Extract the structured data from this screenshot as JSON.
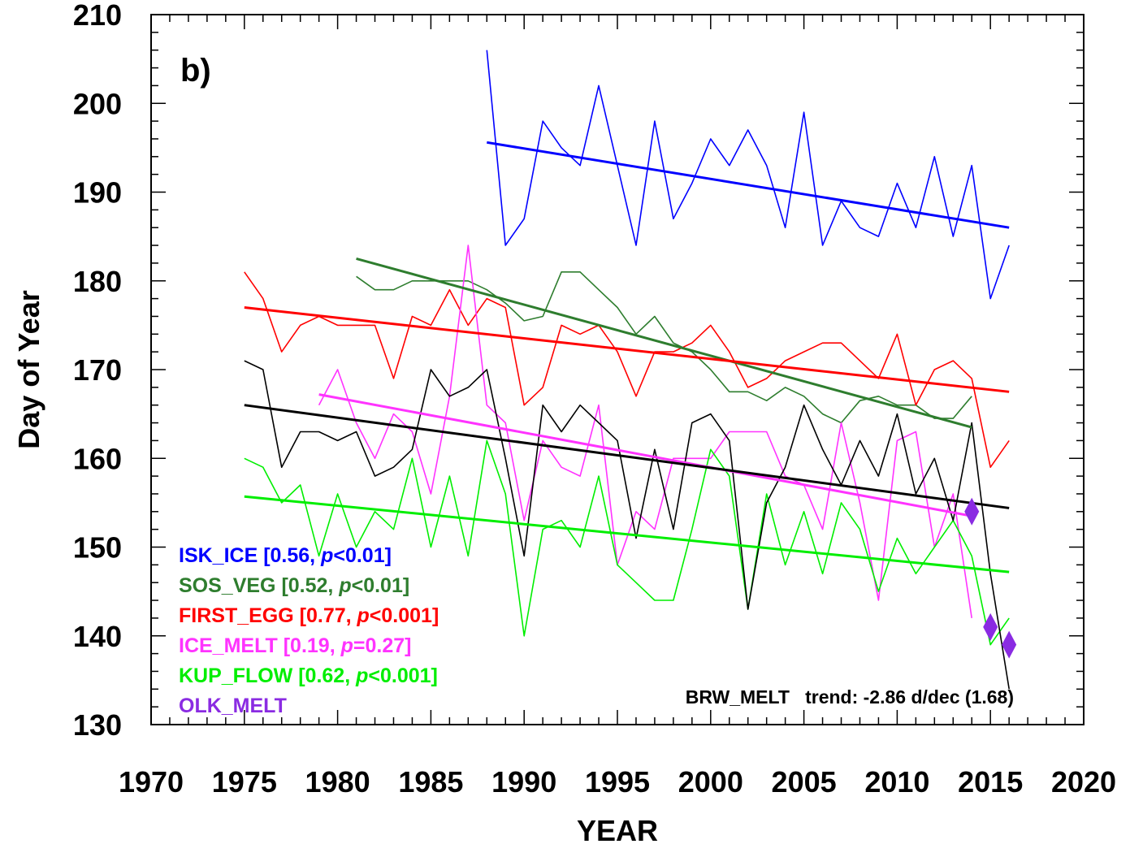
{
  "chart_data": {
    "type": "line",
    "panel_label": "b)",
    "xlabel": "YEAR",
    "ylabel": "Day of Year",
    "xlim": [
      1970,
      2020
    ],
    "ylim": [
      130,
      210
    ],
    "xticks": [
      "1970",
      "1975",
      "1980",
      "1985",
      "1990",
      "1995",
      "2000",
      "2005",
      "2010",
      "2015",
      "2020"
    ],
    "yticks": [
      "130",
      "140",
      "150",
      "160",
      "170",
      "180",
      "190",
      "200",
      "210"
    ],
    "trend_annotation": "BRW_MELT   trend: -2.86 d/dec (1.68)",
    "series": [
      {
        "name": "ISK_ICE",
        "stats": "[0.56, p<0.01]",
        "stats_prefix": "[0.56, ",
        "stats_p": "p",
        "stats_suffix": "<0.01]",
        "color": "#0000ff",
        "x": [
          1988,
          1989,
          1990,
          1991,
          1992,
          1993,
          1994,
          1995,
          1996,
          1997,
          1998,
          1999,
          2000,
          2001,
          2002,
          2003,
          2004,
          2005,
          2006,
          2007,
          2008,
          2009,
          2010,
          2011,
          2012,
          2013,
          2014,
          2015,
          2016
        ],
        "y": [
          206,
          184,
          187,
          198,
          195,
          193,
          202,
          193,
          184,
          198,
          187,
          191,
          196,
          193,
          197,
          193,
          186,
          199,
          184,
          189,
          186,
          185,
          191,
          186,
          194,
          185,
          193,
          178,
          184
        ],
        "trend": [
          [
            1988,
            195.6
          ],
          [
            2016,
            186.0
          ]
        ]
      },
      {
        "name": "SOS_VEG",
        "stats": "[0.52, p<0.01]",
        "stats_prefix": "[0.52, ",
        "stats_p": "p",
        "stats_suffix": "<0.01]",
        "color": "#2e7d2e",
        "x": [
          1981,
          1982,
          1983,
          1984,
          1985,
          1986,
          1987,
          1988,
          1989,
          1990,
          1991,
          1992,
          1993,
          1994,
          1995,
          1996,
          1997,
          1998,
          1999,
          2000,
          2001,
          2002,
          2003,
          2004,
          2005,
          2006,
          2007,
          2008,
          2009,
          2010,
          2011,
          2012,
          2013,
          2014
        ],
        "y": [
          180.5,
          179,
          179,
          180,
          180,
          180,
          180,
          179,
          177.5,
          175.5,
          176,
          181,
          181,
          179,
          177,
          174,
          176,
          173,
          172,
          170,
          167.5,
          167.5,
          166.5,
          168,
          167,
          165,
          164,
          166.5,
          167,
          166,
          166,
          164.5,
          164.5,
          167
        ],
        "trend": [
          [
            1981,
            182.5
          ],
          [
            2014,
            163.5
          ]
        ]
      },
      {
        "name": "FIRST_EGG",
        "stats": "[0.77, p<0.001]",
        "stats_prefix": "[0.77, ",
        "stats_p": "p",
        "stats_suffix": "<0.001]",
        "color": "#ff0000",
        "x": [
          1975,
          1976,
          1977,
          1978,
          1979,
          1980,
          1981,
          1982,
          1983,
          1984,
          1985,
          1986,
          1987,
          1988,
          1989,
          1990,
          1991,
          1992,
          1993,
          1994,
          1995,
          1996,
          1997,
          1998,
          1999,
          2000,
          2001,
          2002,
          2003,
          2004,
          2005,
          2006,
          2007,
          2008,
          2009,
          2010,
          2011,
          2012,
          2013,
          2014,
          2015,
          2016
        ],
        "y": [
          181,
          178,
          172,
          175,
          176,
          175,
          175,
          175,
          169,
          176,
          175,
          179,
          175,
          178,
          177,
          166,
          168,
          175,
          174,
          175,
          172,
          167,
          172,
          172,
          173,
          175,
          172,
          168,
          169,
          171,
          172,
          173,
          173,
          171,
          169,
          174,
          166,
          170,
          171,
          169,
          159,
          162
        ],
        "trend": [
          [
            1975,
            177.0
          ],
          [
            2016,
            167.5
          ]
        ]
      },
      {
        "name": "ICE_MELT",
        "stats": "[0.19, p=0.27]",
        "stats_prefix": "[0.19, ",
        "stats_p": "p",
        "stats_suffix": "=0.27]",
        "color": "#ff33ff",
        "x": [
          1979,
          1980,
          1981,
          1982,
          1983,
          1984,
          1985,
          1986,
          1987,
          1988,
          1989,
          1990,
          1991,
          1992,
          1993,
          1994,
          1995,
          1996,
          1997,
          1998,
          1999,
          2000,
          2001,
          2002,
          2003,
          2004,
          2005,
          2006,
          2007,
          2008,
          2009,
          2010,
          2011,
          2012,
          2013,
          2014
        ],
        "y": [
          166,
          170,
          164,
          160,
          165,
          163,
          156,
          167,
          184,
          166,
          164,
          153,
          162,
          159,
          158,
          166,
          148,
          154,
          152,
          160,
          160,
          160,
          163,
          163,
          163,
          158,
          157,
          152,
          164,
          155,
          144,
          162,
          163,
          150,
          156,
          142
        ],
        "trend": [
          [
            1979,
            167.2
          ],
          [
            2014,
            153.5
          ]
        ]
      },
      {
        "name": "KUP_FLOW",
        "stats": "[0.62, p<0.001]",
        "stats_prefix": "[0.62, ",
        "stats_p": "p",
        "stats_suffix": "<0.001]",
        "color": "#00ee00",
        "x": [
          1975,
          1976,
          1977,
          1978,
          1979,
          1980,
          1981,
          1982,
          1983,
          1984,
          1985,
          1986,
          1987,
          1988,
          1989,
          1990,
          1991,
          1992,
          1993,
          1994,
          1995,
          1996,
          1997,
          1998,
          1999,
          2000,
          2001,
          2002,
          2003,
          2004,
          2005,
          2006,
          2007,
          2008,
          2009,
          2010,
          2011,
          2012,
          2013,
          2014,
          2015,
          2016
        ],
        "y": [
          160,
          159,
          155,
          157,
          149,
          156,
          150,
          154,
          152,
          160,
          150,
          158,
          149,
          162,
          156,
          140,
          152,
          153,
          150,
          158,
          148,
          146,
          144,
          144,
          152,
          161,
          158,
          143,
          156,
          148,
          154,
          147,
          155,
          152,
          145,
          151,
          147,
          150,
          153,
          149,
          139,
          142
        ],
        "trend": [
          [
            1975,
            155.7
          ],
          [
            2016,
            147.2
          ]
        ]
      },
      {
        "name": "BRW_MELT",
        "stats": "",
        "stats_prefix": "",
        "stats_p": "",
        "stats_suffix": "",
        "color": "#000000",
        "x": [
          1975,
          1976,
          1977,
          1978,
          1979,
          1980,
          1981,
          1982,
          1983,
          1984,
          1985,
          1986,
          1987,
          1988,
          1989,
          1990,
          1991,
          1992,
          1993,
          1994,
          1995,
          1996,
          1997,
          1998,
          1999,
          2000,
          2001,
          2002,
          2003,
          2004,
          2005,
          2006,
          2007,
          2008,
          2009,
          2010,
          2011,
          2012,
          2013,
          2014,
          2015,
          2016
        ],
        "y": [
          171,
          170,
          159,
          163,
          163,
          162,
          163,
          158,
          159,
          161,
          170,
          167,
          168,
          170,
          160,
          149,
          166,
          163,
          166,
          164,
          162,
          151,
          161,
          152,
          164,
          165,
          162,
          143,
          155,
          159,
          166,
          161,
          157,
          162,
          158,
          165,
          156,
          160,
          153,
          164,
          147,
          134
        ],
        "trend": [
          [
            1975,
            166.0
          ],
          [
            2016,
            154.4
          ]
        ]
      },
      {
        "name": "OLK_MELT",
        "stats": "",
        "stats_prefix": "",
        "stats_p": "",
        "stats_suffix": "",
        "color": "#8a2be2",
        "markers": [
          [
            2014,
            154
          ],
          [
            2015,
            141
          ],
          [
            2016,
            139
          ]
        ]
      }
    ]
  }
}
